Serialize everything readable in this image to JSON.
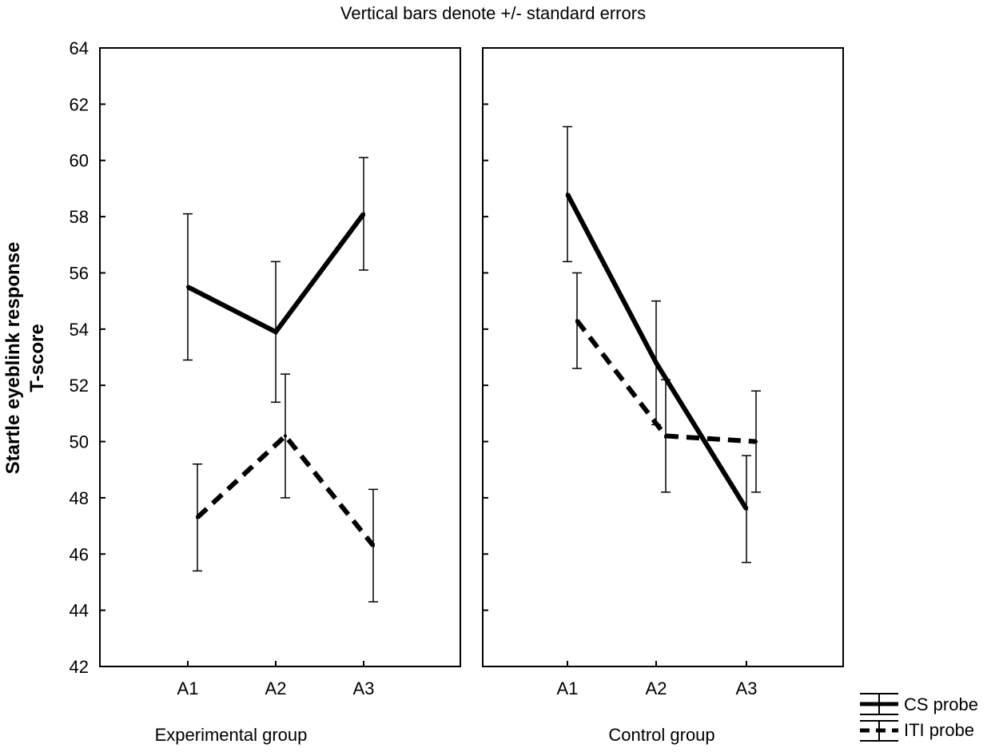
{
  "chart_data": [
    {
      "type": "line",
      "title": "Vertical bars denote +/- standard errors",
      "panel_label": "Experimental group",
      "ylabel": "Startle eyeblink response",
      "ylabel2": "T-score",
      "ylim": [
        42,
        64
      ],
      "yticks": [
        42,
        44,
        46,
        48,
        50,
        52,
        54,
        56,
        58,
        60,
        62,
        64
      ],
      "categories": [
        "A1",
        "A2",
        "A3"
      ],
      "grid": false,
      "series": [
        {
          "name": "CS probe",
          "style": "solid",
          "values": [
            55.5,
            53.9,
            58.1
          ],
          "errors": [
            2.6,
            2.5,
            2.0
          ]
        },
        {
          "name": "ITI probe",
          "style": "dashed",
          "values": [
            47.3,
            50.2,
            46.3
          ],
          "errors": [
            1.9,
            2.2,
            2.0
          ]
        }
      ]
    },
    {
      "type": "line",
      "panel_label": "Control group",
      "ylim": [
        42,
        64
      ],
      "categories": [
        "A1",
        "A2",
        "A3"
      ],
      "grid": false,
      "series": [
        {
          "name": "CS probe",
          "style": "solid",
          "values": [
            58.8,
            52.8,
            47.6
          ],
          "errors": [
            2.4,
            2.2,
            1.9
          ]
        },
        {
          "name": "ITI probe",
          "style": "dashed",
          "values": [
            54.3,
            50.2,
            50.0
          ],
          "errors": [
            1.7,
            2.0,
            1.8
          ]
        }
      ]
    }
  ],
  "legend": {
    "position": "bottom-right",
    "items": [
      {
        "label": "CS probe",
        "style": "solid"
      },
      {
        "label": "ITI probe",
        "style": "dashed"
      }
    ]
  },
  "colors": {
    "line": "#000000",
    "background": "#ffffff"
  }
}
